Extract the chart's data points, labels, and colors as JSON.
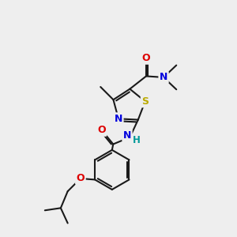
{
  "bg_color": "#eeeeee",
  "bond_color": "#1a1a1a",
  "bond_width": 1.5,
  "atom_colors": {
    "N": "#0000dd",
    "O": "#dd0000",
    "S": "#bbaa00",
    "H": "#009999"
  },
  "font_size": 9,
  "font_size_small": 8.5
}
